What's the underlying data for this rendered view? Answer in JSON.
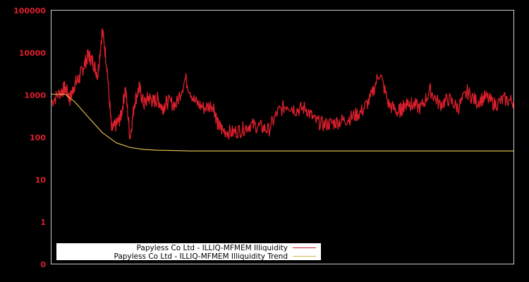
{
  "chart_data": {
    "type": "line",
    "title": "",
    "xlabel": "",
    "ylabel": "",
    "yscale": "log",
    "ylim": [
      0,
      100000
    ],
    "yticks": [
      "100000",
      "10000",
      "1000",
      "100",
      "10",
      "1",
      "0"
    ],
    "grid": false,
    "legend_position": "bottom-left inside",
    "series": [
      {
        "name": "Papyless Co Ltd - ILLIQ-MFMEM Illiquidity",
        "color": "#dd1f2c",
        "x_fraction": [
          0.0,
          0.02,
          0.03,
          0.04,
          0.05,
          0.06,
          0.07,
          0.08,
          0.09,
          0.1,
          0.11,
          0.12,
          0.13,
          0.14,
          0.15,
          0.16,
          0.17,
          0.18,
          0.19,
          0.2,
          0.21,
          0.22,
          0.23,
          0.24,
          0.25,
          0.27,
          0.29,
          0.31,
          0.33,
          0.35,
          0.36,
          0.37,
          0.39,
          0.41,
          0.43,
          0.45,
          0.47,
          0.49,
          0.51,
          0.53,
          0.55,
          0.57,
          0.59,
          0.61,
          0.63,
          0.65,
          0.67,
          0.69,
          0.71,
          0.73,
          0.75,
          0.76,
          0.77,
          0.78,
          0.8,
          0.82,
          0.84,
          0.86,
          0.88,
          0.9,
          0.92,
          0.94,
          0.96,
          0.98,
          1.0
        ],
        "values": [
          700,
          1200,
          1500,
          800,
          1800,
          2500,
          5000,
          9000,
          6000,
          3000,
          35000,
          5000,
          150,
          200,
          300,
          1500,
          100,
          700,
          1500,
          600,
          900,
          700,
          800,
          500,
          700,
          600,
          2500,
          700,
          500,
          600,
          200,
          150,
          130,
          150,
          200,
          180,
          150,
          400,
          600,
          450,
          500,
          250,
          200,
          220,
          250,
          300,
          400,
          800,
          3500,
          600,
          400,
          500,
          700,
          600,
          500,
          1300,
          600,
          800,
          500,
          1200,
          700,
          900,
          600,
          800,
          700
        ]
      },
      {
        "name": "Papyless Co Ltd - ILLIQ-MFMEM Illiquidity Trend",
        "color": "#d8b84a",
        "x_fraction": [
          0.0,
          0.03,
          0.05,
          0.08,
          0.11,
          0.14,
          0.17,
          0.2,
          0.23,
          0.3,
          0.4,
          1.0
        ],
        "values": [
          1050,
          1050,
          700,
          300,
          130,
          75,
          58,
          52,
          50,
          48,
          48,
          48
        ]
      }
    ]
  },
  "legend": {
    "items": [
      {
        "label": "Papyless Co Ltd - ILLIQ-MFMEM Illiquidity",
        "color": "#dd1f2c"
      },
      {
        "label": "Papyless Co Ltd - ILLIQ-MFMEM Illiquidity Trend",
        "color": "#d8b84a"
      }
    ]
  },
  "axis": {
    "tick_color": "#dd1f2c",
    "frame_color": "#cccccc"
  }
}
